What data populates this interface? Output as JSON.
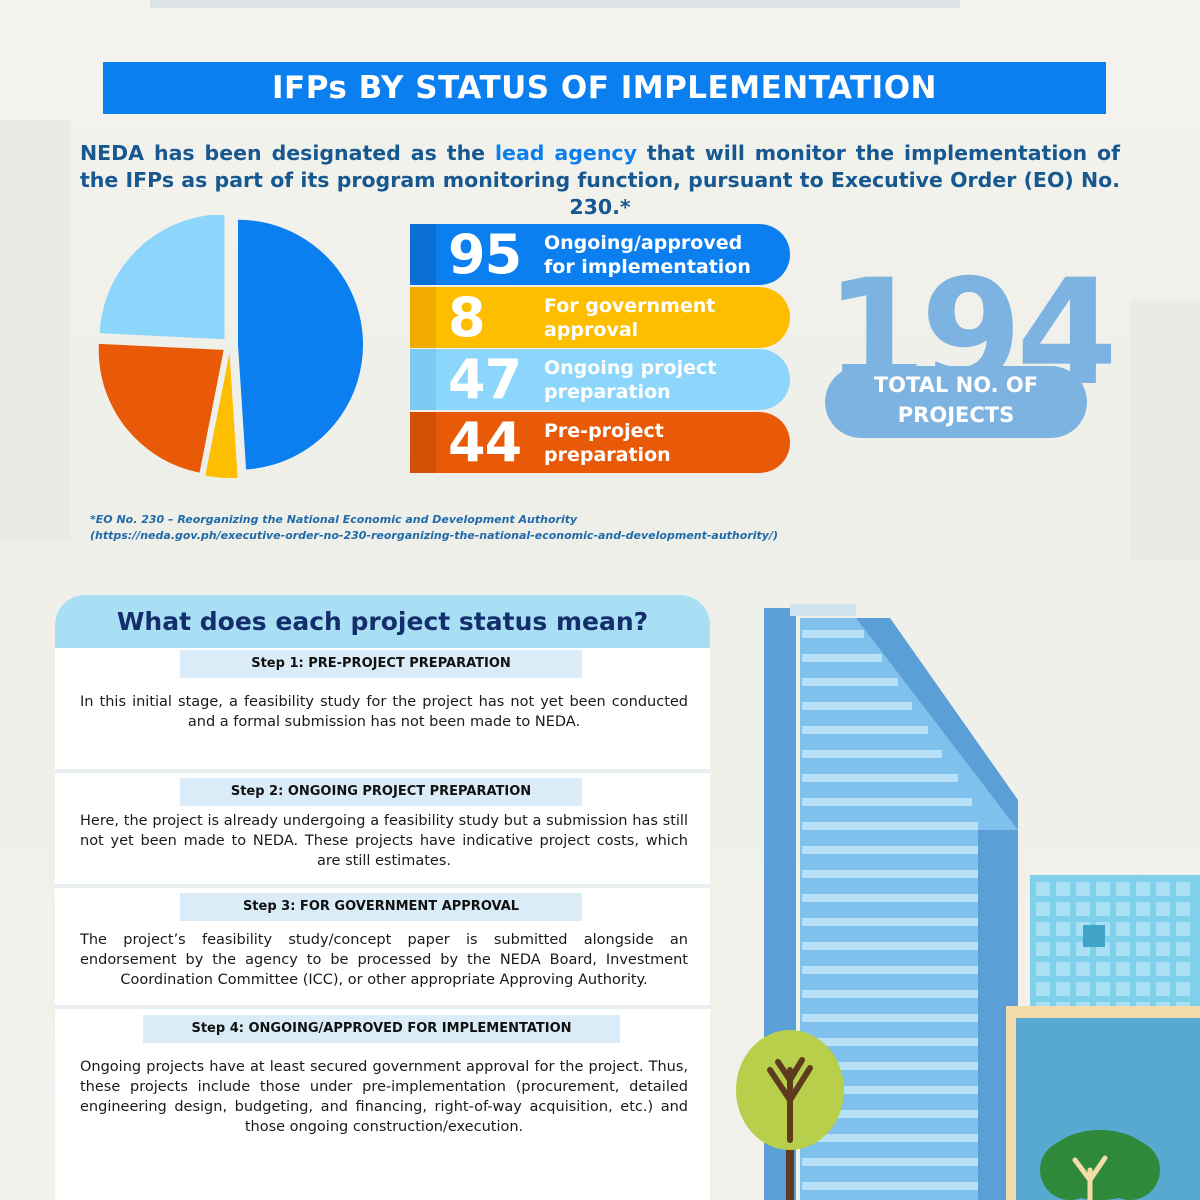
{
  "banner": {
    "title": "IFPs BY STATUS OF IMPLEMENTATION"
  },
  "intro": {
    "before": "NEDA has been designated as the ",
    "highlight": "lead agency",
    "after": " that will monitor the implementation of the IFPs as part of its program monitoring function, pursuant to Executive Order (EO) No. 230.*"
  },
  "colors": {
    "ongoing_approved": "#0b7ef0",
    "gov_approval": "#fdbe00",
    "ongoing_prep": "#8dd6fb",
    "pre_project": "#e85a08",
    "total": "#7db3e0",
    "banner": "#0b7ef0"
  },
  "chart_data": {
    "type": "pie",
    "title": "",
    "slices": [
      {
        "label": "Ongoing/approved for implementation",
        "value": 95,
        "color": "#0b7ef0"
      },
      {
        "label": "For government approval",
        "value": 8,
        "color": "#fdbe00"
      },
      {
        "label": "Pre-project preparation",
        "value": 44,
        "color": "#e85a08"
      },
      {
        "label": "Ongoing project preparation",
        "value": 47,
        "color": "#8dd6fb"
      }
    ]
  },
  "status_rows": [
    {
      "value": "95",
      "label": "Ongoing/approved for implementation",
      "color": "#0b7ef0",
      "edge": "#0a6fd4"
    },
    {
      "value": "8",
      "label": "For government approval",
      "color": "#fdbe00",
      "edge": "#f2a900"
    },
    {
      "value": "47",
      "label": "Ongoing project preparation",
      "color": "#8dd6fb",
      "edge": "#7bcaf1"
    },
    {
      "value": "44",
      "label": "Pre-project preparation",
      "color": "#e85a08",
      "edge": "#d24f04"
    }
  ],
  "total": {
    "value": "194",
    "caption_line1": "TOTAL NO. OF",
    "caption_line2": "PROJECTS"
  },
  "footnote": {
    "line1": "*EO No. 230 – Reorganizing the National Economic and Development Authority",
    "line2": "(https://neda.gov.ph/executive-order-no-230-reorganizing-the-national-economic-and-development-authority/)"
  },
  "steps": {
    "heading": "What does each project status mean?",
    "items": [
      {
        "title": "Step 1: PRE-PROJECT PREPARATION",
        "body": "In this initial stage, a feasibility study for the project has not yet been conducted and a formal submission has not been made to NEDA."
      },
      {
        "title": "Step 2: ONGOING PROJECT PREPARATION",
        "body": "Here, the project is already undergoing a feasibility study but a submission has still not yet been made to NEDA. These projects have indicative project costs, which are still estimates."
      },
      {
        "title": "Step 3: FOR GOVERNMENT APPROVAL",
        "body": "The project’s feasibility study/concept paper is submitted alongside an endorsement by the agency to be processed by the NEDA Board, Investment Coordination Committee (ICC), or other appropriate Approving Authority."
      },
      {
        "title": "Step 4: ONGOING/APPROVED FOR IMPLEMENTATION",
        "body": "Ongoing projects have at least secured government approval for the project. Thus, these projects include those under pre-implementation (procurement, detailed engineering design, budgeting, and financing, right-of-way acquisition, etc.) and those ongoing construction/execution."
      }
    ]
  }
}
